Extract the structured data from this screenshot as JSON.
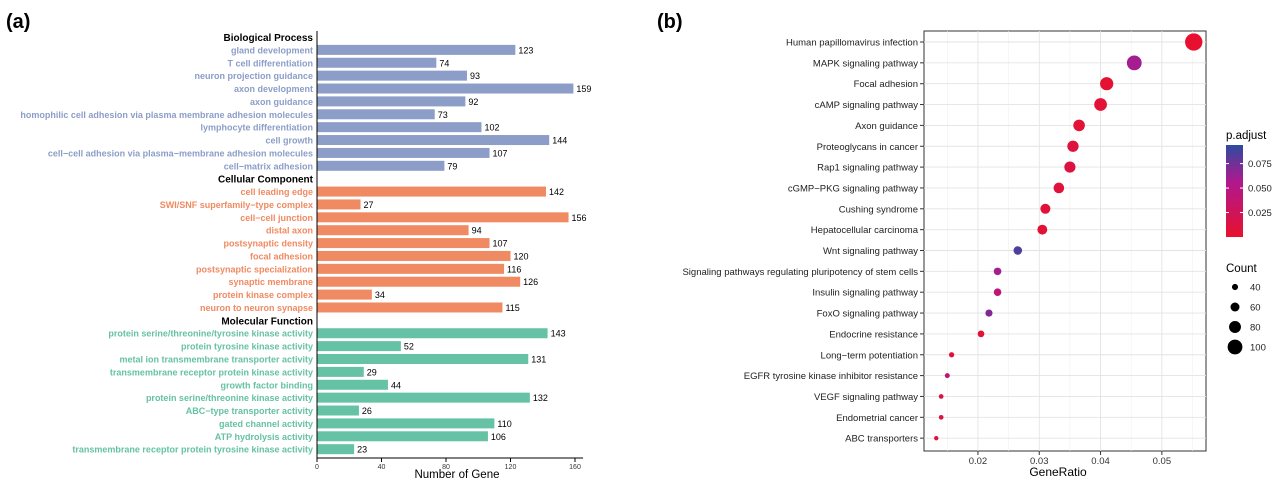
{
  "panel_labels": {
    "a": "(a)",
    "b": "(b)"
  },
  "chart_data": [
    {
      "type": "bar",
      "orientation": "horizontal",
      "xlabel": "Number of Gene",
      "xlim": [
        0,
        165
      ],
      "xticks": [
        0,
        40,
        80,
        120,
        160
      ],
      "groups": [
        {
          "name": "Biological Process",
          "color": "#8C9DC8",
          "categories": [
            "gland development",
            "T cell differentiation",
            "neuron projection guidance",
            "axon development",
            "axon guidance",
            "homophilic cell adhesion via plasma membrane adhesion molecules",
            "lymphocyte differentiation",
            "cell growth",
            "cell−cell adhesion via plasma−membrane adhesion molecules",
            "cell−matrix adhesion"
          ],
          "values": [
            123,
            74,
            93,
            159,
            92,
            73,
            102,
            144,
            107,
            79
          ]
        },
        {
          "name": "Cellular Component",
          "color": "#F08A62",
          "categories": [
            "cell leading edge",
            "SWI/SNF superfamily−type complex",
            "cell−cell junction",
            "distal axon",
            "postsynaptic density",
            "focal adhesion",
            "postsynaptic specialization",
            "synaptic membrane",
            "protein kinase complex",
            "neuron to neuron synapse"
          ],
          "values": [
            142,
            27,
            156,
            94,
            107,
            120,
            116,
            126,
            34,
            115
          ]
        },
        {
          "name": "Molecular Function",
          "color": "#66C2A4",
          "categories": [
            "protein serine/threonine/tyrosine kinase activity",
            "protein tyrosine kinase activity",
            "metal ion transmembrane transporter activity",
            "transmembrane receptor protein kinase activity",
            "growth factor binding",
            "protein serine/threonine kinase activity",
            "ABC−type transporter activity",
            "gated channel activity",
            "ATP hydrolysis activity",
            "transmembrane receptor protein tyrosine kinase activity"
          ],
          "values": [
            143,
            52,
            131,
            29,
            44,
            132,
            26,
            110,
            106,
            23
          ]
        }
      ]
    },
    {
      "type": "scatter",
      "xlabel": "GeneRatio",
      "xlim": [
        0.0112,
        0.0572
      ],
      "xticks": [
        0.02,
        0.03,
        0.04,
        0.05
      ],
      "grid": true,
      "categories": [
        "Human papillomavirus infection",
        "MAPK signaling pathway",
        "Focal adhesion",
        "cAMP signaling pathway",
        "Axon guidance",
        "Proteoglycans in cancer",
        "Rap1 signaling pathway",
        "cGMP−PKG signaling pathway",
        "Cushing syndrome",
        "Hepatocellular carcinoma",
        "Wnt signaling pathway",
        "Signaling pathways regulating pluripotency of stem cells",
        "Insulin signaling pathway",
        "FoxO signaling pathway",
        "Endocrine resistance",
        "Long−term potentiation",
        "EGFR tyrosine kinase inhibitor resistance",
        "VEGF signaling pathway",
        "Endometrial cancer",
        "ABC transporters"
      ],
      "gene_ratio": [
        0.0552,
        0.0455,
        0.041,
        0.04,
        0.0365,
        0.0355,
        0.035,
        0.0332,
        0.031,
        0.0305,
        0.0265,
        0.0232,
        0.0232,
        0.0218,
        0.0205,
        0.0157,
        0.015,
        0.014,
        0.014,
        0.0132
      ],
      "count": [
        118,
        100,
        89,
        86,
        78,
        76,
        75,
        71,
        67,
        66,
        57,
        50,
        50,
        47,
        44,
        34,
        32,
        30,
        30,
        28
      ],
      "p_adjust": [
        0.001,
        0.06,
        0.003,
        0.005,
        0.005,
        0.01,
        0.012,
        0.008,
        0.008,
        0.006,
        0.085,
        0.06,
        0.04,
        0.07,
        0.008,
        0.008,
        0.04,
        0.012,
        0.012,
        0.01
      ],
      "color_legend": {
        "title": "p.adjust",
        "ticks": [
          0.075,
          0.05,
          0.025
        ],
        "labels": [
          "0.075",
          "0.050",
          "0.025"
        ],
        "range": [
          0.0,
          0.094
        ],
        "low_color": "#E8112D",
        "high_color": "#2E4BA0"
      },
      "size_legend": {
        "title": "Count",
        "values": [
          40,
          60,
          80,
          100
        ],
        "labels": [
          "40",
          "60",
          "80",
          "100"
        ]
      }
    }
  ]
}
